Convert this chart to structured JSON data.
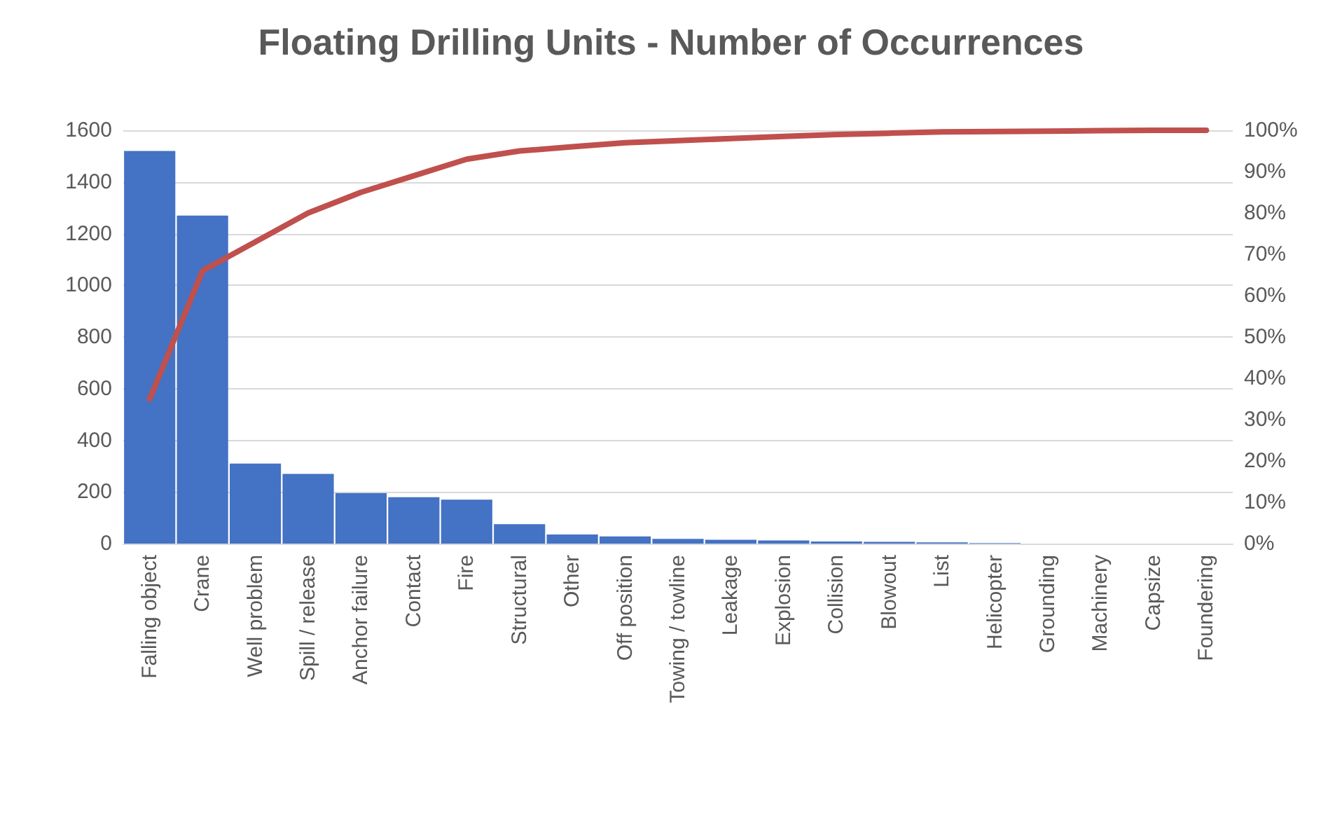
{
  "chart_data": {
    "type": "bar",
    "title": "Floating Drilling Units - Number of Occurrences",
    "categories": [
      "Falling object",
      "Crane",
      "Well problem",
      "Spill / release",
      "Anchor failure",
      "Contact",
      "Fire",
      "Structural",
      "Other",
      "Off position",
      "Towing / towline",
      "Leakage",
      "Explosion",
      "Collision",
      "Blowout",
      "List",
      "Helicopter",
      "Grounding",
      "Machinery",
      "Capsize",
      "Foundering"
    ],
    "series": [
      {
        "color": "#4472c4",
        "values": [
          1520,
          1270,
          310,
          270,
          195,
          180,
          170,
          75,
          35,
          28,
          18,
          15,
          12,
          8,
          7,
          5,
          2,
          null,
          null,
          null,
          0
        ]
      },
      {
        "type": "line",
        "axis": "y2",
        "color": "#c0504d",
        "values": [
          35,
          66,
          73,
          80,
          85,
          89,
          93,
          95,
          96,
          97,
          97.5,
          98,
          98.5,
          99,
          99.3,
          99.6,
          99.7,
          99.8,
          99.9,
          100,
          100
        ]
      }
    ],
    "ylim": [
      0,
      1600
    ],
    "yticks": [
      0,
      200,
      400,
      600,
      800,
      1000,
      1200,
      1400,
      1600
    ],
    "y2lim": [
      0,
      100
    ],
    "y2ticks": [
      {
        "value": 0,
        "label": "0%"
      },
      {
        "value": 10,
        "label": "10%"
      },
      {
        "value": 20,
        "label": "20%"
      },
      {
        "value": 30,
        "label": "30%"
      },
      {
        "value": 40,
        "label": "40%"
      },
      {
        "value": 50,
        "label": "50%"
      },
      {
        "value": 60,
        "label": "60%"
      },
      {
        "value": 70,
        "label": "70%"
      },
      {
        "value": 80,
        "label": "80%"
      },
      {
        "value": 90,
        "label": "90%"
      },
      {
        "value": 100,
        "label": "100%"
      }
    ],
    "grid": "y",
    "marker": "none"
  }
}
